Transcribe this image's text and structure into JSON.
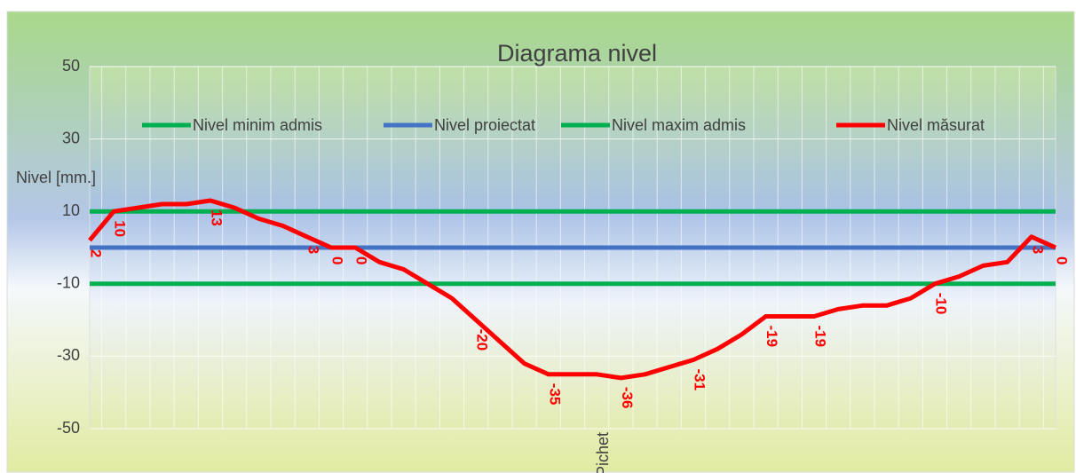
{
  "chart_data": {
    "type": "line",
    "title": "Diagrama nivel",
    "x_label": "Pichet",
    "y_label": "Nivel [mm.]",
    "categories": [
      null,
      null,
      null,
      null,
      null,
      null,
      null,
      null,
      null,
      null,
      null,
      null,
      null,
      null,
      null,
      null,
      null,
      null,
      null,
      null,
      null,
      null,
      null,
      null,
      null,
      null,
      null,
      null,
      null,
      null,
      null,
      null,
      null,
      null,
      null,
      null,
      null,
      null,
      null,
      null,
      null
    ],
    "series": [
      {
        "name": "Nivel minim admis",
        "color": "#00b050",
        "values": [
          -10,
          -10,
          -10,
          -10,
          -10,
          -10,
          -10,
          -10,
          -10,
          -10,
          -10,
          -10,
          -10,
          -10,
          -10,
          -10,
          -10,
          -10,
          -10,
          -10,
          -10,
          -10,
          -10,
          -10,
          -10,
          -10,
          -10,
          -10,
          -10,
          -10,
          -10,
          -10,
          -10,
          -10,
          -10,
          -10,
          -10,
          -10,
          -10,
          -10,
          -10
        ]
      },
      {
        "name": "Nivel proiectat",
        "color": "#4472c4",
        "values": [
          0,
          0,
          0,
          0,
          0,
          0,
          0,
          0,
          0,
          0,
          0,
          0,
          0,
          0,
          0,
          0,
          0,
          0,
          0,
          0,
          0,
          0,
          0,
          0,
          0,
          0,
          0,
          0,
          0,
          0,
          0,
          0,
          0,
          0,
          0,
          0,
          0,
          0,
          0,
          0,
          0
        ]
      },
      {
        "name": "Nivel maxim admis",
        "color": "#00b050",
        "values": [
          10,
          10,
          10,
          10,
          10,
          10,
          10,
          10,
          10,
          10,
          10,
          10,
          10,
          10,
          10,
          10,
          10,
          10,
          10,
          10,
          10,
          10,
          10,
          10,
          10,
          10,
          10,
          10,
          10,
          10,
          10,
          10,
          10,
          10,
          10,
          10,
          10,
          10,
          10,
          10,
          10
        ]
      },
      {
        "name": "Nivel măsurat",
        "color": "#ff0000",
        "values": [
          2,
          10,
          11,
          12,
          12,
          13,
          11,
          8,
          6,
          3,
          0,
          0,
          -4,
          -6,
          -10,
          -14,
          -20,
          -26,
          -32,
          -35,
          -35,
          -35,
          -36,
          -35,
          -33,
          -31,
          -28,
          -24,
          -19,
          -19,
          -19,
          -17,
          -16,
          -16,
          -14,
          -10,
          -8,
          -5,
          -4,
          3,
          0
        ],
        "value_labels": [
          "2",
          "10",
          null,
          null,
          null,
          "13",
          null,
          null,
          null,
          "3",
          "0",
          "0",
          null,
          null,
          null,
          null,
          "-20",
          null,
          null,
          "-35",
          null,
          null,
          "-36",
          null,
          null,
          "-31",
          null,
          null,
          "-19",
          null,
          "-19",
          null,
          null,
          null,
          null,
          "-10",
          null,
          null,
          null,
          "3",
          "0"
        ]
      }
    ],
    "ylim": [
      -50,
      50
    ],
    "yticks": [
      -50,
      -30,
      -10,
      10,
      30,
      50
    ],
    "grid": true,
    "legend": "top"
  }
}
